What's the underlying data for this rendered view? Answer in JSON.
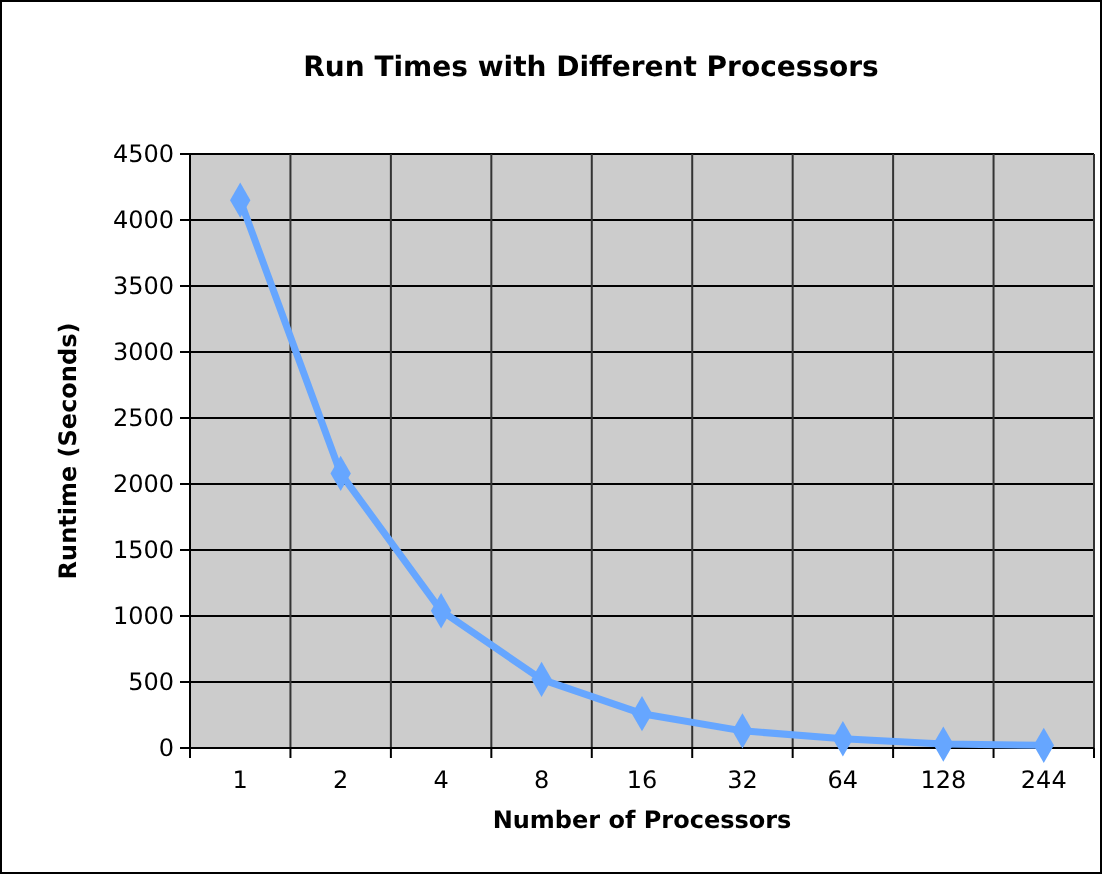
{
  "chart_data": {
    "type": "line",
    "title": "Run Times with Different Processors",
    "xlabel": "Number of Processors",
    "ylabel": "Runtime (Seconds)",
    "categories": [
      "1",
      "2",
      "4",
      "8",
      "16",
      "32",
      "64",
      "128",
      "244"
    ],
    "series": [
      {
        "color": "#66a6ff",
        "values": [
          4150,
          2080,
          1040,
          520,
          260,
          130,
          70,
          30,
          20
        ]
      }
    ],
    "ylim": [
      0,
      4500
    ],
    "yticks": [
      0,
      500,
      1000,
      1500,
      2000,
      2500,
      3000,
      3500,
      4000,
      4500
    ],
    "grid": true,
    "marker": "diamond"
  }
}
